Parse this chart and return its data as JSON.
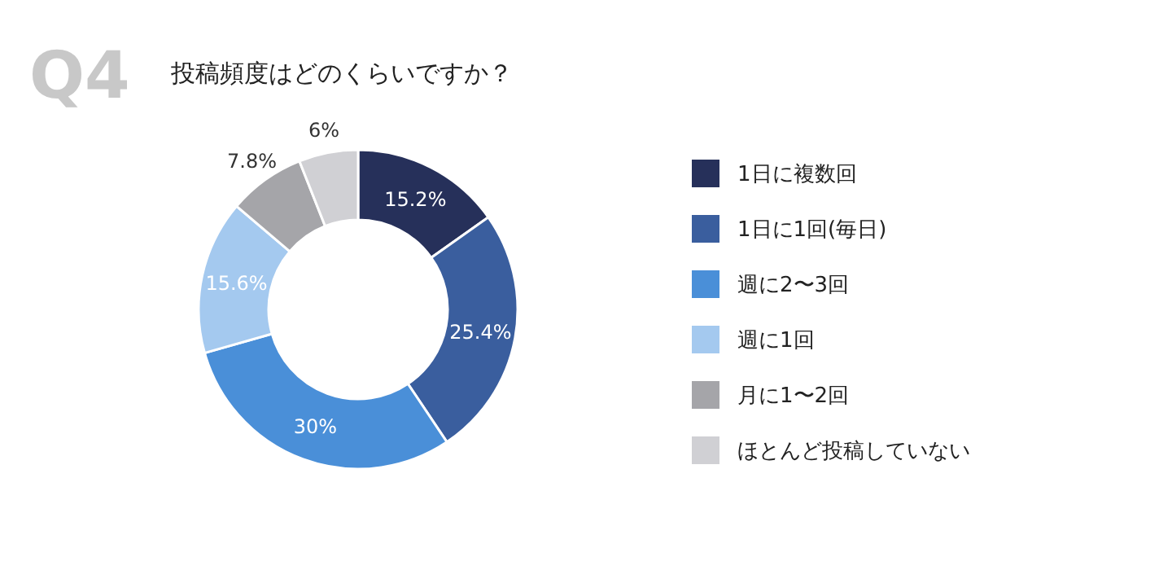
{
  "chart_data": {
    "type": "donut",
    "title": "投稿頻度はどのくらいですか？",
    "annotations": [
      "Q4"
    ],
    "categories": [
      "1日に複数回",
      "1日に1回(毎日)",
      "週に2〜3回",
      "週に1回",
      "月に1〜2回",
      "ほとんど投稿していない"
    ],
    "values": [
      15.2,
      25.4,
      30,
      15.6,
      7.8,
      6
    ],
    "value_labels": [
      "15.2%",
      "25.4%",
      "30%",
      "15.6%",
      "7.8%",
      "6%"
    ],
    "colors": [
      "#26305a",
      "#3a5e9e",
      "#4a8fd8",
      "#a4c9ef",
      "#a5a5a9",
      "#d0d0d4"
    ],
    "legend": "right"
  }
}
